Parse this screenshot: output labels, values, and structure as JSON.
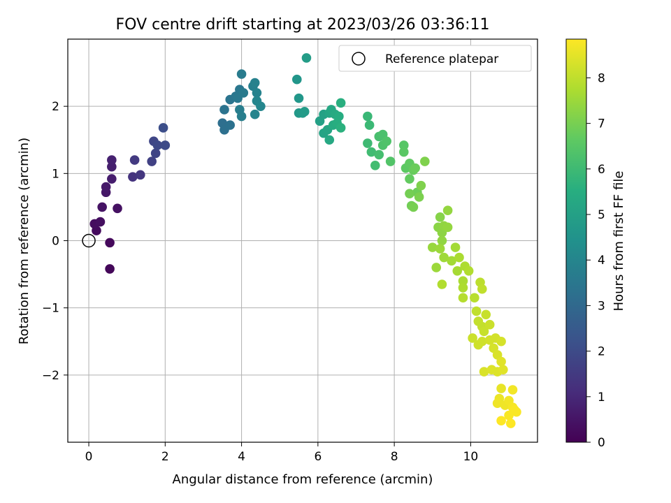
{
  "chart_data": {
    "type": "scatter",
    "title": "FOV centre drift starting at 2023/03/26 03:36:11",
    "xlabel": "Angular distance from reference (arcmin)",
    "ylabel": "Rotation from reference (arcmin)",
    "xlim": [
      -0.55,
      11.75
    ],
    "ylim": [
      -3.0,
      3.0
    ],
    "xticks": [
      0,
      2,
      4,
      6,
      8,
      10
    ],
    "yticks": [
      -2,
      -1,
      0,
      1,
      2
    ],
    "xtick_labels": [
      "0",
      "2",
      "4",
      "6",
      "8",
      "10"
    ],
    "ytick_labels": [
      "−2",
      "−1",
      "0",
      "1",
      "2"
    ],
    "grid": true,
    "legend": {
      "position": "top-right",
      "entries": [
        "Reference platepar"
      ]
    },
    "reference_point": {
      "x": 0,
      "y": 0
    },
    "colorbar": {
      "label": "Hours from first FF file",
      "range": [
        0,
        8.85
      ],
      "ticks": [
        0,
        1,
        2,
        3,
        4,
        5,
        6,
        7,
        8
      ],
      "tick_labels": [
        "0",
        "1",
        "2",
        "3",
        "4",
        "5",
        "6",
        "7",
        "8"
      ],
      "colormap": "viridis"
    },
    "points": [
      [
        0.55,
        -0.42,
        0.15
      ],
      [
        0.55,
        -0.03,
        0.2
      ],
      [
        0.2,
        0.15,
        0.25
      ],
      [
        0.15,
        0.25,
        0.3
      ],
      [
        0.3,
        0.28,
        0.35
      ],
      [
        0.75,
        0.48,
        0.4
      ],
      [
        0.35,
        0.5,
        0.45
      ],
      [
        0.45,
        0.72,
        0.55
      ],
      [
        0.45,
        0.8,
        0.6
      ],
      [
        0.6,
        0.92,
        0.7
      ],
      [
        0.6,
        1.1,
        0.75
      ],
      [
        0.6,
        1.2,
        0.8
      ],
      [
        1.15,
        0.95,
        1.3
      ],
      [
        1.35,
        0.98,
        1.4
      ],
      [
        1.2,
        1.2,
        1.5
      ],
      [
        1.65,
        1.18,
        1.7
      ],
      [
        1.75,
        1.3,
        1.8
      ],
      [
        1.7,
        1.48,
        1.85
      ],
      [
        1.8,
        1.42,
        1.95
      ],
      [
        2.0,
        1.42,
        2.0
      ],
      [
        1.95,
        1.68,
        2.1
      ],
      [
        3.5,
        1.75,
        3.2
      ],
      [
        3.55,
        1.65,
        3.25
      ],
      [
        3.7,
        1.72,
        3.3
      ],
      [
        3.55,
        1.95,
        3.35
      ],
      [
        3.7,
        2.1,
        3.4
      ],
      [
        3.85,
        2.15,
        3.45
      ],
      [
        3.95,
        2.25,
        3.5
      ],
      [
        3.9,
        2.12,
        3.55
      ],
      [
        4.05,
        2.2,
        3.6
      ],
      [
        4.0,
        2.48,
        3.65
      ],
      [
        3.95,
        1.95,
        3.7
      ],
      [
        4.0,
        1.85,
        3.75
      ],
      [
        4.3,
        2.3,
        3.8
      ],
      [
        4.35,
        2.35,
        3.85
      ],
      [
        4.4,
        2.2,
        3.9
      ],
      [
        4.35,
        1.88,
        3.95
      ],
      [
        4.4,
        2.08,
        4.0
      ],
      [
        4.5,
        2.0,
        4.05
      ],
      [
        5.45,
        2.4,
        4.6
      ],
      [
        5.5,
        2.12,
        4.65
      ],
      [
        5.5,
        1.9,
        4.7
      ],
      [
        5.6,
        1.9,
        4.75
      ],
      [
        5.65,
        1.92,
        4.8
      ],
      [
        5.7,
        2.72,
        4.85
      ],
      [
        6.05,
        1.78,
        5.0
      ],
      [
        6.15,
        1.88,
        5.05
      ],
      [
        6.15,
        1.6,
        5.1
      ],
      [
        6.25,
        1.65,
        5.15
      ],
      [
        6.3,
        1.9,
        5.2
      ],
      [
        6.35,
        1.95,
        5.25
      ],
      [
        6.3,
        1.5,
        5.3
      ],
      [
        6.45,
        1.88,
        5.35
      ],
      [
        6.4,
        1.72,
        5.4
      ],
      [
        6.55,
        1.85,
        5.45
      ],
      [
        6.5,
        1.75,
        5.5
      ],
      [
        6.6,
        2.05,
        5.55
      ],
      [
        6.6,
        1.68,
        5.6
      ],
      [
        7.3,
        1.85,
        5.9
      ],
      [
        7.35,
        1.72,
        5.95
      ],
      [
        7.3,
        1.45,
        6.0
      ],
      [
        7.4,
        1.32,
        6.05
      ],
      [
        7.5,
        1.12,
        6.1
      ],
      [
        7.6,
        1.28,
        6.15
      ],
      [
        7.6,
        1.55,
        6.2
      ],
      [
        7.7,
        1.58,
        6.25
      ],
      [
        7.7,
        1.42,
        6.3
      ],
      [
        7.8,
        1.48,
        6.35
      ],
      [
        7.9,
        1.18,
        6.4
      ],
      [
        8.25,
        1.42,
        6.5
      ],
      [
        8.25,
        1.32,
        6.55
      ],
      [
        8.3,
        1.08,
        6.6
      ],
      [
        8.4,
        1.15,
        6.65
      ],
      [
        8.4,
        0.92,
        6.7
      ],
      [
        8.5,
        1.05,
        6.75
      ],
      [
        8.55,
        1.08,
        6.8
      ],
      [
        8.6,
        0.72,
        6.85
      ],
      [
        8.45,
        0.52,
        6.9
      ],
      [
        8.4,
        0.7,
        6.95
      ],
      [
        8.5,
        0.5,
        7.0
      ],
      [
        8.65,
        0.65,
        7.05
      ],
      [
        8.7,
        0.82,
        7.1
      ],
      [
        8.8,
        1.18,
        7.1
      ],
      [
        9.2,
        0.35,
        7.2
      ],
      [
        9.15,
        0.2,
        7.25
      ],
      [
        9.25,
        0.12,
        7.3
      ],
      [
        9.25,
        0.0,
        7.35
      ],
      [
        9.3,
        0.22,
        7.35
      ],
      [
        9.4,
        0.45,
        7.4
      ],
      [
        9.4,
        0.2,
        7.4
      ],
      [
        9.0,
        -0.1,
        7.45
      ],
      [
        9.1,
        -0.4,
        7.5
      ],
      [
        9.2,
        -0.12,
        7.5
      ],
      [
        9.3,
        -0.25,
        7.55
      ],
      [
        9.5,
        -0.3,
        7.6
      ],
      [
        9.6,
        -0.1,
        7.6
      ],
      [
        9.65,
        -0.45,
        7.65
      ],
      [
        9.7,
        -0.25,
        7.7
      ],
      [
        9.8,
        -0.6,
        7.7
      ],
      [
        9.8,
        -0.7,
        7.75
      ],
      [
        9.85,
        -0.38,
        7.75
      ],
      [
        9.95,
        -0.45,
        7.8
      ],
      [
        9.25,
        -0.65,
        7.8
      ],
      [
        9.8,
        -0.85,
        7.85
      ],
      [
        10.1,
        -0.85,
        7.9
      ],
      [
        10.25,
        -0.62,
        7.95
      ],
      [
        10.3,
        -0.72,
        8.0
      ],
      [
        10.15,
        -1.05,
        8.0
      ],
      [
        10.2,
        -1.2,
        8.05
      ],
      [
        10.3,
        -1.28,
        8.05
      ],
      [
        10.4,
        -1.1,
        8.1
      ],
      [
        10.35,
        -1.35,
        8.1
      ],
      [
        10.5,
        -1.25,
        8.15
      ],
      [
        10.05,
        -1.45,
        8.15
      ],
      [
        10.2,
        -1.55,
        8.2
      ],
      [
        10.3,
        -1.5,
        8.2
      ],
      [
        10.5,
        -1.48,
        8.25
      ],
      [
        10.65,
        -1.45,
        8.25
      ],
      [
        10.6,
        -1.6,
        8.3
      ],
      [
        10.8,
        -1.5,
        8.3
      ],
      [
        10.7,
        -1.7,
        8.35
      ],
      [
        10.35,
        -1.95,
        8.35
      ],
      [
        10.55,
        -1.92,
        8.4
      ],
      [
        10.7,
        -1.95,
        8.4
      ],
      [
        10.8,
        -1.8,
        8.45
      ],
      [
        10.85,
        -1.92,
        8.45
      ],
      [
        10.8,
        -2.2,
        8.55
      ],
      [
        10.75,
        -2.35,
        8.6
      ],
      [
        10.7,
        -2.42,
        8.65
      ],
      [
        10.9,
        -2.45,
        8.65
      ],
      [
        11.0,
        -2.38,
        8.7
      ],
      [
        11.1,
        -2.22,
        8.7
      ],
      [
        11.1,
        -2.48,
        8.75
      ],
      [
        11.15,
        -2.52,
        8.8
      ],
      [
        11.2,
        -2.55,
        8.8
      ],
      [
        11.0,
        -2.6,
        8.8
      ],
      [
        10.8,
        -2.68,
        8.85
      ],
      [
        11.05,
        -2.72,
        8.85
      ]
    ]
  }
}
